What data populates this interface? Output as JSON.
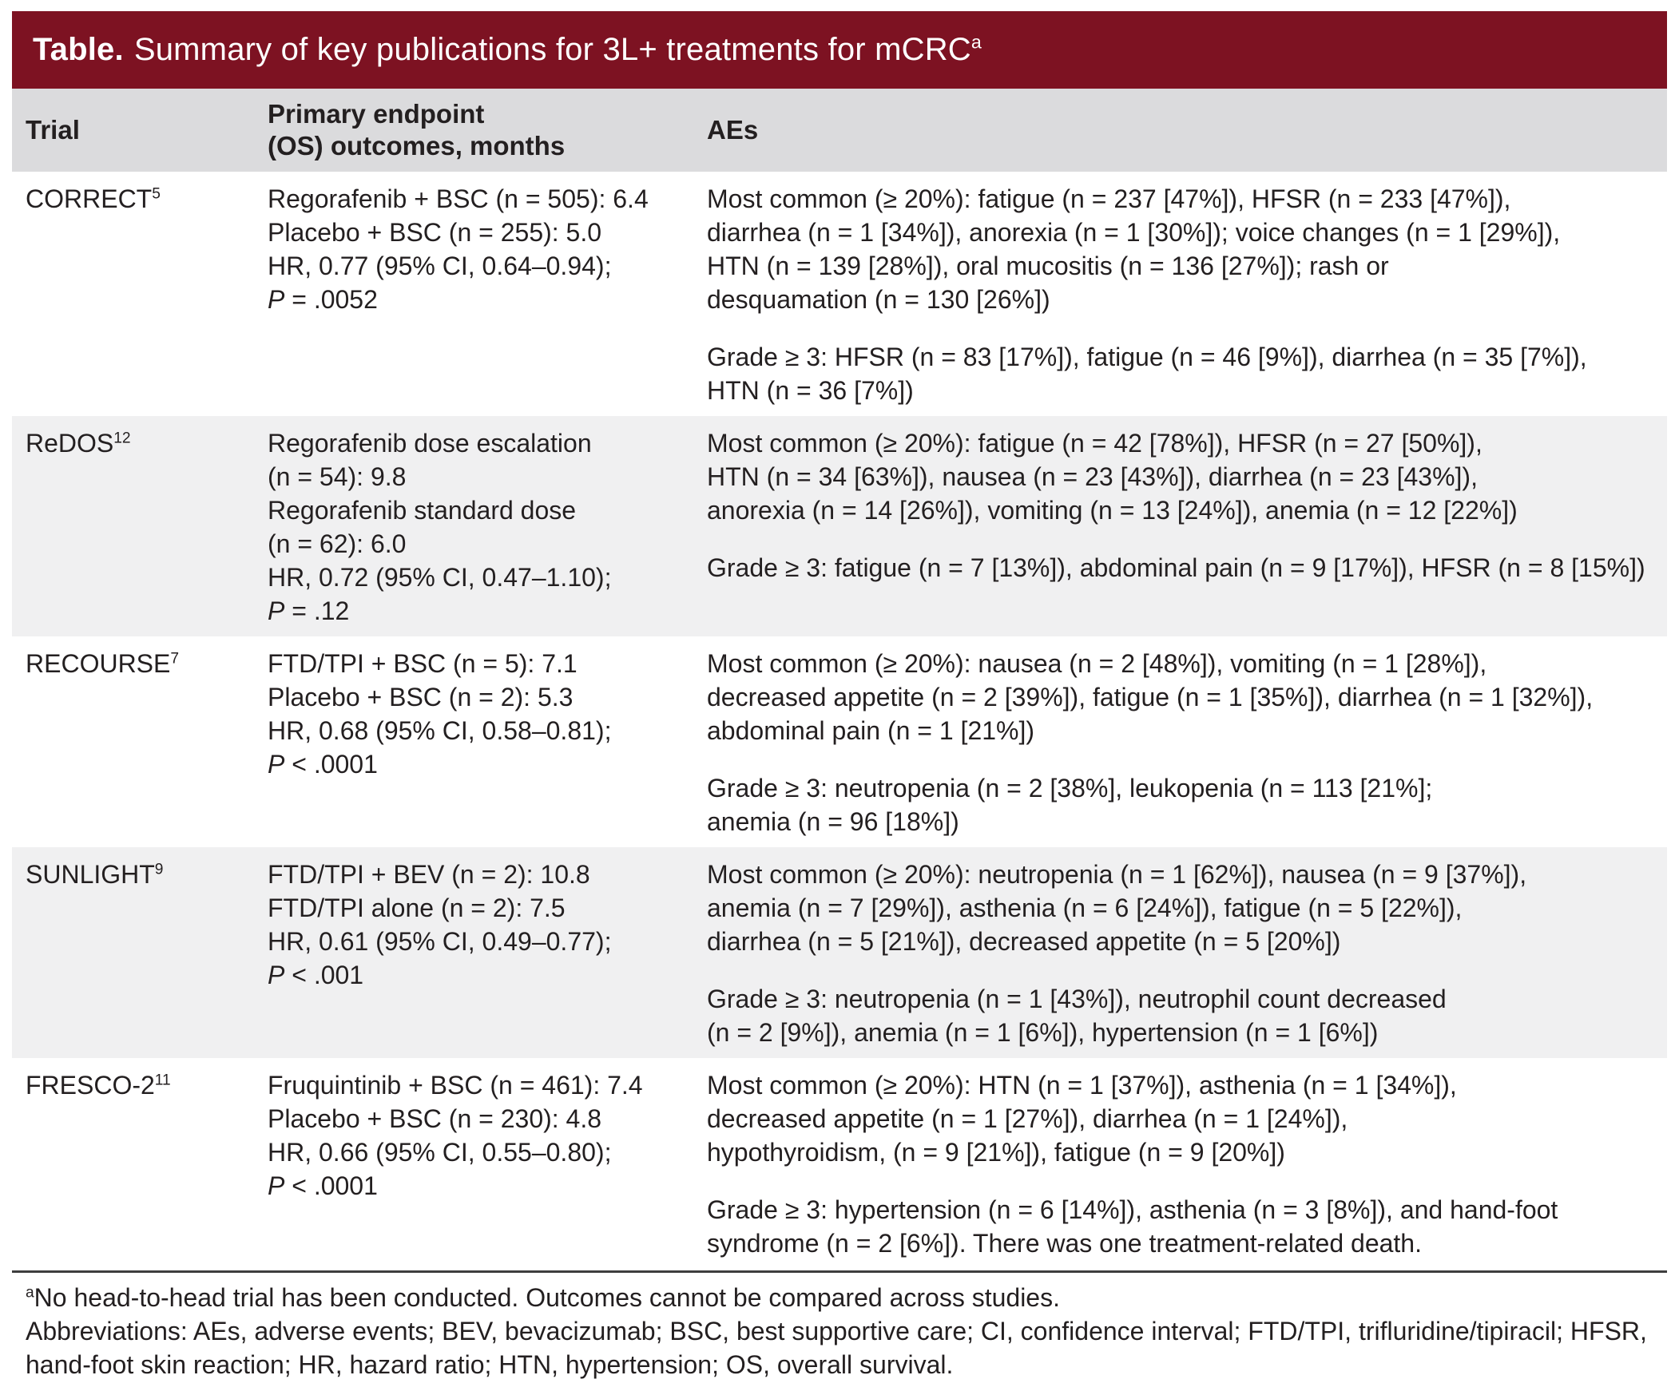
{
  "title": {
    "bold": "Table.",
    "rest": "Summary of key publications for 3L+ treatments for mCRC",
    "sup": "a"
  },
  "columns": {
    "trial": "Trial",
    "endpoint_line1": "Primary endpoint",
    "endpoint_line2": "(OS) outcomes, months",
    "aes": "AEs"
  },
  "rows": [
    {
      "trial": "CORRECT",
      "trial_sup": "5",
      "endpoint_lines": [
        "Regorafenib + BSC (n = 505): 6.4",
        "Placebo + BSC (n = 255): 5.0",
        "HR, 0.77 (95% CI, 0.64–0.94);"
      ],
      "p_symbol": "P",
      "p_rest": " = .0052",
      "aes_paragraphs": [
        [
          "Most common (≥ 20%): fatigue (n = 237 [47%]), HFSR (n = 233 [47%]),",
          "diarrhea (n = 1 [34%]), anorexia (n = 1 [30%]); voice changes (n = 1 [29%]),",
          "HTN (n = 139 [28%]), oral mucositis (n = 136 [27%]); rash or",
          "desquamation (n = 130 [26%])"
        ],
        [
          "Grade ≥ 3: HFSR (n = 83 [17%]), fatigue (n = 46 [9%]), diarrhea (n = 35 [7%]),",
          "HTN (n = 36 [7%])"
        ]
      ]
    },
    {
      "trial": "ReDOS",
      "trial_sup": "12",
      "endpoint_lines": [
        "Regorafenib dose escalation",
        "(n = 54): 9.8",
        "Regorafenib standard dose",
        "(n = 62): 6.0",
        "HR, 0.72 (95% CI, 0.47–1.10);"
      ],
      "p_symbol": "P",
      "p_rest": " = .12",
      "aes_paragraphs": [
        [
          "Most common (≥ 20%): fatigue (n = 42 [78%]), HFSR (n = 27 [50%]),",
          "HTN (n = 34 [63%]), nausea (n = 23 [43%]), diarrhea (n = 23 [43%]),",
          "anorexia (n = 14 [26%]), vomiting (n = 13 [24%]), anemia (n = 12 [22%])"
        ],
        [
          "Grade ≥ 3: fatigue (n = 7 [13%]), abdominal pain (n = 9 [17%]), HFSR (n = 8 [15%])"
        ]
      ]
    },
    {
      "trial": "RECOURSE",
      "trial_sup": "7",
      "endpoint_lines": [
        "FTD/TPI + BSC (n = 5): 7.1",
        "Placebo + BSC (n = 2): 5.3",
        "HR, 0.68 (95% CI, 0.58–0.81);"
      ],
      "p_symbol": "P",
      "p_rest": " < .0001",
      "aes_paragraphs": [
        [
          "Most common (≥ 20%): nausea (n = 2 [48%]), vomiting (n = 1 [28%]),",
          "decreased appetite (n = 2 [39%]), fatigue (n = 1 [35%]), diarrhea (n = 1 [32%]),",
          "abdominal pain (n = 1 [21%])"
        ],
        [
          "Grade ≥ 3: neutropenia (n = 2 [38%], leukopenia (n = 113 [21%];",
          "anemia (n = 96 [18%])"
        ]
      ]
    },
    {
      "trial": "SUNLIGHT",
      "trial_sup": "9",
      "endpoint_lines": [
        "FTD/TPI + BEV (n = 2): 10.8",
        "FTD/TPI alone (n = 2): 7.5",
        "HR, 0.61 (95% CI, 0.49–0.77);"
      ],
      "p_symbol": "P",
      "p_rest": " < .001",
      "aes_paragraphs": [
        [
          "Most common (≥ 20%): neutropenia (n = 1 [62%]), nausea (n = 9 [37%]),",
          "anemia (n = 7 [29%]), asthenia (n = 6 [24%]), fatigue (n = 5 [22%]),",
          "diarrhea (n = 5 [21%]), decreased appetite (n = 5 [20%])"
        ],
        [
          "Grade ≥ 3: neutropenia (n = 1 [43%]), neutrophil count decreased",
          "(n = 2 [9%]), anemia (n = 1 [6%]), hypertension (n = 1 [6%])"
        ]
      ]
    },
    {
      "trial": "FRESCO-2",
      "trial_sup": "11",
      "endpoint_lines": [
        "Fruquintinib + BSC (n = 461): 7.4",
        "Placebo + BSC (n = 230): 4.8",
        "HR, 0.66 (95% CI, 0.55–0.80);"
      ],
      "p_symbol": "P",
      "p_rest": " < .0001",
      "aes_paragraphs": [
        [
          "Most common (≥ 20%): HTN (n = 1 [37%]), asthenia (n = 1 [34%]),",
          "decreased appetite (n = 1 [27%]), diarrhea (n = 1 [24%]),",
          "hypothyroidism, (n = 9 [21%]), fatigue (n = 9 [20%])"
        ],
        [
          "Grade ≥ 3: hypertension (n = 6 [14%]), asthenia (n = 3 [8%]), and hand-foot",
          "syndrome (n = 2 [6%]). There was one treatment-related death."
        ]
      ]
    }
  ],
  "footnotes": {
    "marker": "a",
    "note": "No head-to-head trial has been conducted. Outcomes cannot be compared across studies.",
    "abbreviations": "Abbreviations: AEs, adverse events; BEV, bevacizumab; BSC, best supportive care; CI, confidence interval; FTD/TPI, trifluridine/tipiracil; HFSR, hand-foot skin reaction; HR, hazard ratio; HTN, hypertension; OS, overall survival."
  },
  "colors": {
    "title_bar_bg": "#7D1222",
    "title_bar_text": "#FFFFFF",
    "column_header_bg": "#DBDBDD",
    "row_alt_bg": "#F0F0F1",
    "body_text": "#231F20",
    "rule_color": "#3E3E3E",
    "page_bg": "#FFFFFF"
  }
}
